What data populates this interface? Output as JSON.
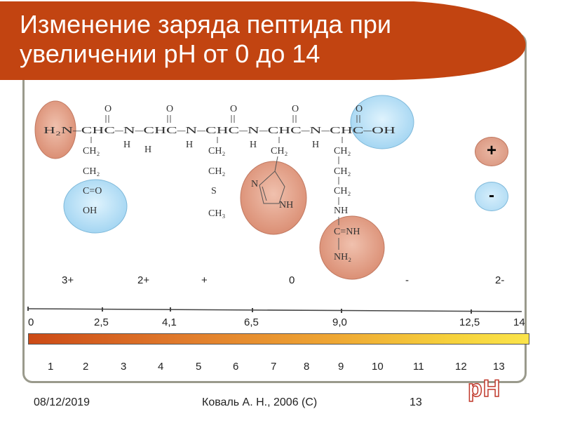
{
  "title": {
    "line1": "Изменение заряда пептида при",
    "line2": "увеличении pH от 0 до 14"
  },
  "colors": {
    "banner": "#c24411",
    "frame": "#9a9a8c",
    "positive_group": "#dd9a83",
    "negative_group": "#a9d8f3",
    "bar_start": "#cc4a16",
    "bar_end": "#fbe44a"
  },
  "structure": {
    "main_chain": "H₂N–CHC–N–CHC–N–CHC–N–CHC–N–CHC–OH",
    "n_terminus": "H₂N",
    "c_terminus_oh": "OH",
    "oxygen": "O",
    "hydrogen": "H",
    "nitrogen": "N",
    "asp_chain": [
      "CH₂",
      "CH₂",
      "C=O",
      "OH"
    ],
    "met_chain": [
      "CH₂",
      "CH₂",
      "S",
      "CH₃"
    ],
    "his_chain": [
      "CH₂"
    ],
    "his_ring": [
      "N",
      "NH"
    ],
    "arg_chain": [
      "CH₂",
      "CH₂",
      "CH₂",
      "NH",
      "C=NH",
      "NH₂"
    ]
  },
  "legend": {
    "plus": "+",
    "minus": "-"
  },
  "charges": [
    "3+",
    "2+",
    "+",
    "0",
    "-",
    "2-"
  ],
  "scale_ticks": [
    "0",
    "2,5",
    "4,1",
    "6,5",
    "9,0",
    "12,5",
    "14"
  ],
  "ph_numbers": [
    "1",
    "2",
    "3",
    "4",
    "5",
    "6",
    "7",
    "8",
    "9",
    "10",
    "11",
    "12",
    "13"
  ],
  "footer": {
    "date": "08/12/2019",
    "author": "Коваль А. Н., 2006 (С)",
    "page": "13",
    "ph_label": "pH"
  }
}
